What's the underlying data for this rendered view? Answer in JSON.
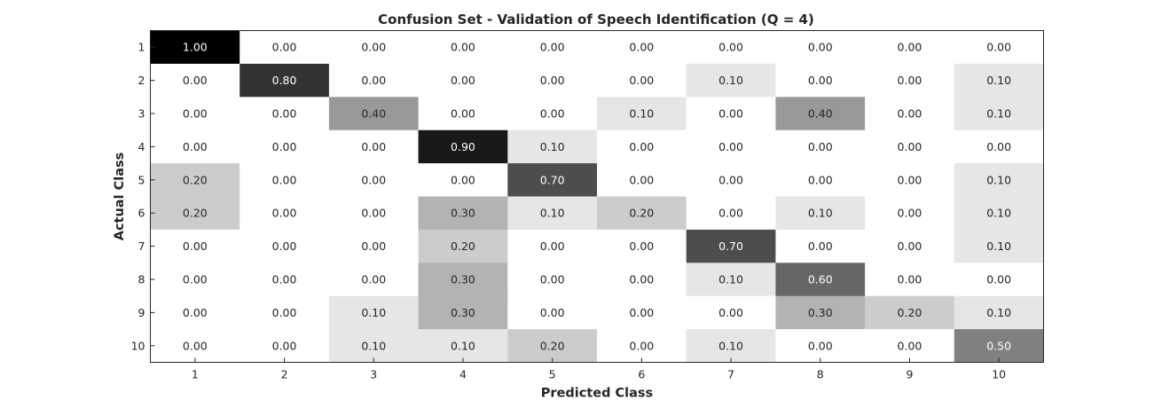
{
  "chart_data": {
    "type": "heatmap",
    "title": "Confusion Set - Validation of Speech Identification (Q = 4)",
    "xlabel": "Predicted Class",
    "ylabel": "Actual Class",
    "x_categories": [
      "1",
      "2",
      "3",
      "4",
      "5",
      "6",
      "7",
      "8",
      "9",
      "10"
    ],
    "y_categories": [
      "1",
      "2",
      "3",
      "4",
      "5",
      "6",
      "7",
      "8",
      "9",
      "10"
    ],
    "colormap": "gray-reversed",
    "value_range": [
      0,
      1
    ],
    "values": [
      [
        1.0,
        0.0,
        0.0,
        0.0,
        0.0,
        0.0,
        0.0,
        0.0,
        0.0,
        0.0
      ],
      [
        0.0,
        0.8,
        0.0,
        0.0,
        0.0,
        0.0,
        0.1,
        0.0,
        0.0,
        0.1
      ],
      [
        0.0,
        0.0,
        0.4,
        0.0,
        0.0,
        0.1,
        0.0,
        0.4,
        0.0,
        0.1
      ],
      [
        0.0,
        0.0,
        0.0,
        0.9,
        0.1,
        0.0,
        0.0,
        0.0,
        0.0,
        0.0
      ],
      [
        0.2,
        0.0,
        0.0,
        0.0,
        0.7,
        0.0,
        0.0,
        0.0,
        0.0,
        0.1
      ],
      [
        0.2,
        0.0,
        0.0,
        0.3,
        0.1,
        0.2,
        0.0,
        0.1,
        0.0,
        0.1
      ],
      [
        0.0,
        0.0,
        0.0,
        0.2,
        0.0,
        0.0,
        0.7,
        0.0,
        0.0,
        0.1
      ],
      [
        0.0,
        0.0,
        0.0,
        0.3,
        0.0,
        0.0,
        0.1,
        0.6,
        0.0,
        0.0
      ],
      [
        0.0,
        0.0,
        0.1,
        0.3,
        0.0,
        0.0,
        0.0,
        0.3,
        0.2,
        0.1
      ],
      [
        0.0,
        0.0,
        0.1,
        0.1,
        0.2,
        0.0,
        0.1,
        0.0,
        0.0,
        0.5
      ]
    ],
    "value_format_decimals": 2
  }
}
